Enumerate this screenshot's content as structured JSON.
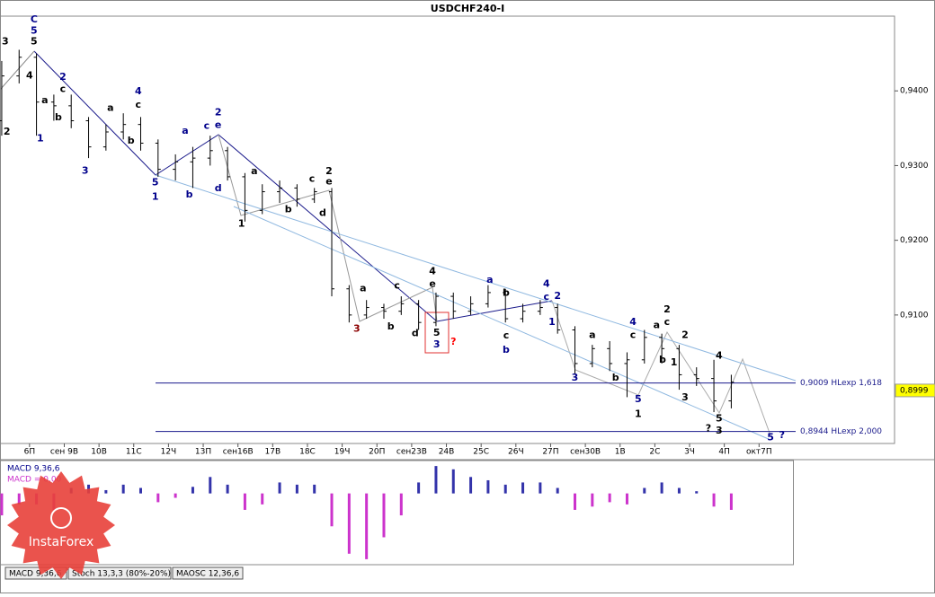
{
  "chart_data": [
    {
      "type": "ohlc",
      "title": "USDCHF240-I",
      "x": [
        -0.8,
        -0.3,
        0.2,
        0.7,
        1.2,
        1.7,
        2.2,
        2.7,
        3.2,
        3.7,
        4.2,
        4.7,
        5.2,
        5.7,
        6.2,
        6.7,
        7.2,
        7.7,
        8.2,
        8.7,
        9.2,
        9.7,
        10.2,
        10.7,
        11.2,
        11.7,
        12.2,
        12.7,
        13.2,
        13.7,
        14.2,
        14.7,
        15.2,
        15.7,
        16.2,
        16.7,
        17.2,
        17.7,
        18.2,
        18.7,
        19.2,
        19.7,
        20.2
      ],
      "open": [
        0.936,
        0.942,
        0.9445,
        0.9385,
        0.938,
        0.936,
        0.9325,
        0.9345,
        0.9355,
        0.933,
        0.9295,
        0.9305,
        0.931,
        0.932,
        0.9285,
        0.924,
        0.9265,
        0.927,
        0.9255,
        0.9265,
        0.9135,
        0.91,
        0.911,
        0.9105,
        0.9115,
        0.909,
        0.9125,
        0.9105,
        0.9115,
        0.913,
        0.9095,
        0.9105,
        0.911,
        0.908,
        0.9035,
        0.9055,
        0.9035,
        0.904,
        0.907,
        0.9055,
        0.902,
        0.9015,
        0.8985
      ],
      "high": [
        0.944,
        0.9455,
        0.945,
        0.9395,
        0.9395,
        0.9365,
        0.9355,
        0.937,
        0.9365,
        0.9335,
        0.9315,
        0.9325,
        0.934,
        0.9325,
        0.929,
        0.9275,
        0.928,
        0.9275,
        0.927,
        0.927,
        0.914,
        0.912,
        0.9115,
        0.9125,
        0.912,
        0.913,
        0.913,
        0.9125,
        0.914,
        0.9135,
        0.9115,
        0.912,
        0.9115,
        0.9085,
        0.906,
        0.9065,
        0.905,
        0.908,
        0.9075,
        0.906,
        0.903,
        0.904,
        0.902
      ],
      "low": [
        0.934,
        0.941,
        0.934,
        0.936,
        0.935,
        0.931,
        0.932,
        0.9335,
        0.932,
        0.9285,
        0.928,
        0.927,
        0.93,
        0.928,
        0.9225,
        0.9235,
        0.925,
        0.9245,
        0.925,
        0.9125,
        0.909,
        0.9095,
        0.9095,
        0.91,
        0.908,
        0.9085,
        0.9095,
        0.91,
        0.911,
        0.909,
        0.909,
        0.91,
        0.9075,
        0.902,
        0.903,
        0.9025,
        0.899,
        0.9035,
        0.9035,
        0.9,
        0.9005,
        0.897,
        0.8975
      ],
      "close": [
        0.942,
        0.9445,
        0.9385,
        0.938,
        0.936,
        0.9325,
        0.9345,
        0.9355,
        0.933,
        0.9295,
        0.9305,
        0.931,
        0.932,
        0.9285,
        0.924,
        0.9265,
        0.927,
        0.9255,
        0.9265,
        0.9135,
        0.91,
        0.911,
        0.9105,
        0.9115,
        0.909,
        0.9125,
        0.9105,
        0.9115,
        0.913,
        0.9095,
        0.9105,
        0.911,
        0.908,
        0.9035,
        0.9055,
        0.9035,
        0.904,
        0.907,
        0.9055,
        0.902,
        0.9015,
        0.8985,
        0.901
      ],
      "color": "#000000",
      "xlim": [
        -0.85,
        24.9
      ],
      "ylim": [
        0.8928,
        0.95
      ],
      "yticks": [
        {
          "value": 0.94,
          "label": "0,9400"
        },
        {
          "value": 0.93,
          "label": "0,9300"
        },
        {
          "value": 0.92,
          "label": "0,9200"
        },
        {
          "value": 0.91,
          "label": "0,9100"
        }
      ],
      "xticks": [
        {
          "value": 0,
          "label": "6П"
        },
        {
          "value": 1,
          "label": "сен 9В"
        },
        {
          "value": 2,
          "label": "10В"
        },
        {
          "value": 3,
          "label": "11С"
        },
        {
          "value": 4,
          "label": "12Ч"
        },
        {
          "value": 5,
          "label": "13П"
        },
        {
          "value": 6,
          "label": "сен16В"
        },
        {
          "value": 7,
          "label": "17В"
        },
        {
          "value": 8,
          "label": "18С"
        },
        {
          "value": 9,
          "label": "19Ч"
        },
        {
          "value": 10,
          "label": "20П"
        },
        {
          "value": 11,
          "label": "сен23В"
        },
        {
          "value": 12,
          "label": "24В"
        },
        {
          "value": 13,
          "label": "25С"
        },
        {
          "value": 14,
          "label": "26Ч"
        },
        {
          "value": 15,
          "label": "27П"
        },
        {
          "value": 16,
          "label": "сен30В"
        },
        {
          "value": 17,
          "label": "1В"
        },
        {
          "value": 18,
          "label": "2С"
        },
        {
          "value": 19,
          "label": "3Ч"
        },
        {
          "value": 20,
          "label": "4П"
        },
        {
          "value": 21,
          "label": "окт7П"
        }
      ],
      "current_price": {
        "value": 0.8999,
        "label": "0,8999"
      },
      "levels": [
        {
          "value": 0.9009,
          "label": "0,9009 HLexp 1,618"
        },
        {
          "value": 0.8944,
          "label": "0,8944 HLexp 2,000"
        }
      ],
      "annotations": [
        {
          "text": "C",
          "x": 0.13,
          "y": 0.9495,
          "color": "#00008b"
        },
        {
          "text": "5",
          "x": 0.13,
          "y": 0.948,
          "color": "#00008b"
        },
        {
          "text": "3",
          "x": -0.7,
          "y": 0.9466,
          "color": "#000000"
        },
        {
          "text": "5",
          "x": 0.13,
          "y": 0.9466,
          "color": "#000000"
        },
        {
          "text": "4",
          "x": 0.0,
          "y": 0.942,
          "color": "#000000"
        },
        {
          "text": "2",
          "x": -0.65,
          "y": 0.9345,
          "color": "#000000"
        },
        {
          "text": "1",
          "x": 0.31,
          "y": 0.9336,
          "color": "#00008b"
        },
        {
          "text": "2",
          "x": 0.96,
          "y": 0.9418,
          "color": "#00008b"
        },
        {
          "text": "c",
          "x": 0.96,
          "y": 0.9402,
          "color": "#000000"
        },
        {
          "text": "a",
          "x": 0.44,
          "y": 0.9387,
          "color": "#000000"
        },
        {
          "text": "b",
          "x": 0.83,
          "y": 0.9364,
          "color": "#000000"
        },
        {
          "text": "3",
          "x": 1.6,
          "y": 0.9293,
          "color": "#00008b"
        },
        {
          "text": "4",
          "x": 3.13,
          "y": 0.9399,
          "color": "#00008b"
        },
        {
          "text": "c",
          "x": 3.13,
          "y": 0.9381,
          "color": "#000000"
        },
        {
          "text": "a",
          "x": 2.33,
          "y": 0.9377,
          "color": "#000000"
        },
        {
          "text": "b",
          "x": 2.92,
          "y": 0.9333,
          "color": "#000000"
        },
        {
          "text": "5",
          "x": 3.62,
          "y": 0.9277,
          "color": "#00008b"
        },
        {
          "text": "1",
          "x": 3.62,
          "y": 0.9258,
          "color": "#00008b"
        },
        {
          "text": "b",
          "x": 4.6,
          "y": 0.9261,
          "color": "#00008b"
        },
        {
          "text": "a",
          "x": 4.48,
          "y": 0.9346,
          "color": "#00008b"
        },
        {
          "text": "2",
          "x": 5.43,
          "y": 0.9371,
          "color": "#00008b"
        },
        {
          "text": "c",
          "x": 5.1,
          "y": 0.9353,
          "color": "#00008b"
        },
        {
          "text": "e",
          "x": 5.43,
          "y": 0.9354,
          "color": "#00008b"
        },
        {
          "text": "d",
          "x": 5.43,
          "y": 0.9269,
          "color": "#00008b"
        },
        {
          "text": "a",
          "x": 6.47,
          "y": 0.9292,
          "color": "#000000"
        },
        {
          "text": "1",
          "x": 6.1,
          "y": 0.9222,
          "color": "#000000"
        },
        {
          "text": "b",
          "x": 7.45,
          "y": 0.9241,
          "color": "#000000"
        },
        {
          "text": "c",
          "x": 8.13,
          "y": 0.9282,
          "color": "#000000"
        },
        {
          "text": "2",
          "x": 8.62,
          "y": 0.9292,
          "color": "#000000"
        },
        {
          "text": "e",
          "x": 8.62,
          "y": 0.9278,
          "color": "#000000"
        },
        {
          "text": "d",
          "x": 8.44,
          "y": 0.9236,
          "color": "#000000"
        },
        {
          "text": "a",
          "x": 9.6,
          "y": 0.9135,
          "color": "#000000"
        },
        {
          "text": "c",
          "x": 10.58,
          "y": 0.9139,
          "color": "#000000"
        },
        {
          "text": "b",
          "x": 10.4,
          "y": 0.9084,
          "color": "#000000"
        },
        {
          "text": "3",
          "x": 9.42,
          "y": 0.9081,
          "color": "#8b0000"
        },
        {
          "text": "d",
          "x": 11.1,
          "y": 0.9075,
          "color": "#000000"
        },
        {
          "text": "4",
          "x": 11.6,
          "y": 0.9158,
          "color": "#000000"
        },
        {
          "text": "e",
          "x": 11.6,
          "y": 0.9141,
          "color": "#000000"
        },
        {
          "text": "5",
          "x": 11.72,
          "y": 0.9076,
          "color": "#000000"
        },
        {
          "text": "3",
          "x": 11.72,
          "y": 0.906,
          "color": "#00008b"
        },
        {
          "text": "?",
          "x": 12.2,
          "y": 0.9064,
          "color": "#ff0000"
        },
        {
          "text": "a",
          "x": 13.25,
          "y": 0.9147,
          "color": "#00008b"
        },
        {
          "text": "b",
          "x": 13.72,
          "y": 0.9129,
          "color": "#000000"
        },
        {
          "text": "c",
          "x": 13.72,
          "y": 0.9072,
          "color": "#000000"
        },
        {
          "text": "b",
          "x": 13.72,
          "y": 0.9053,
          "color": "#00008b"
        },
        {
          "text": "4",
          "x": 14.88,
          "y": 0.9141,
          "color": "#00008b"
        },
        {
          "text": "c",
          "x": 14.88,
          "y": 0.9124,
          "color": "#00008b"
        },
        {
          "text": "2",
          "x": 15.2,
          "y": 0.9125,
          "color": "#00008b"
        },
        {
          "text": "1",
          "x": 15.04,
          "y": 0.909,
          "color": "#00008b"
        },
        {
          "text": "3",
          "x": 15.7,
          "y": 0.9016,
          "color": "#00008b"
        },
        {
          "text": "a",
          "x": 16.2,
          "y": 0.9073,
          "color": "#000000"
        },
        {
          "text": "b",
          "x": 16.87,
          "y": 0.9016,
          "color": "#000000"
        },
        {
          "text": "4",
          "x": 17.37,
          "y": 0.909,
          "color": "#00008b"
        },
        {
          "text": "c",
          "x": 17.37,
          "y": 0.9073,
          "color": "#000000"
        },
        {
          "text": "5",
          "x": 17.52,
          "y": 0.8987,
          "color": "#00008b"
        },
        {
          "text": "1",
          "x": 17.52,
          "y": 0.8967,
          "color": "#000000"
        },
        {
          "text": "2",
          "x": 18.35,
          "y": 0.9107,
          "color": "#000000"
        },
        {
          "text": "a",
          "x": 18.05,
          "y": 0.9086,
          "color": "#000000"
        },
        {
          "text": "c",
          "x": 18.35,
          "y": 0.909,
          "color": "#000000"
        },
        {
          "text": "b",
          "x": 18.22,
          "y": 0.904,
          "color": "#000000"
        },
        {
          "text": "1",
          "x": 18.55,
          "y": 0.9036,
          "color": "#000000"
        },
        {
          "text": "2",
          "x": 18.87,
          "y": 0.9073,
          "color": "#000000"
        },
        {
          "text": "3",
          "x": 18.87,
          "y": 0.8989,
          "color": "#000000"
        },
        {
          "text": "4",
          "x": 19.85,
          "y": 0.9045,
          "color": "#000000"
        },
        {
          "text": "5",
          "x": 19.85,
          "y": 0.8961,
          "color": "#000000"
        },
        {
          "text": "?",
          "x": 19.54,
          "y": 0.8948,
          "color": "#000000"
        },
        {
          "text": "3",
          "x": 19.85,
          "y": 0.8945,
          "color": "#000000"
        },
        {
          "text": "5",
          "x": 21.33,
          "y": 0.8936,
          "color": "#00008b"
        },
        {
          "text": "?",
          "x": 21.66,
          "y": 0.8939,
          "color": "#00008b"
        }
      ]
    },
    {
      "type": "bar",
      "legend": [
        {
          "name": "MACD 9,36,6",
          "color": "#00008b"
        },
        {
          "name": "MACD = 0,00",
          "color": "#cc33cc"
        }
      ],
      "x": [
        -0.8,
        -0.3,
        0.2,
        0.7,
        1.2,
        1.7,
        2.2,
        2.7,
        3.2,
        3.7,
        4.2,
        4.7,
        5.2,
        5.7,
        6.2,
        6.7,
        7.2,
        7.7,
        8.2,
        8.7,
        9.2,
        9.7,
        10.2,
        10.7,
        11.2,
        11.7,
        12.2,
        12.7,
        13.2,
        13.7,
        14.2,
        14.7,
        15.2,
        15.7,
        16.2,
        16.7,
        17.2,
        17.7,
        18.2,
        18.7,
        19.2,
        19.7,
        20.2
      ],
      "values": [
        -0.002,
        -0.001,
        -0.001,
        -0.0015,
        0.0005,
        0.0008,
        0.0003,
        0.0008,
        0.0005,
        -0.0008,
        -0.0004,
        0.0006,
        0.0015,
        0.0008,
        -0.0015,
        -0.001,
        0.001,
        0.0008,
        0.0008,
        -0.003,
        -0.0055,
        -0.006,
        -0.004,
        -0.002,
        0.001,
        0.0025,
        0.0022,
        0.0015,
        0.0012,
        0.0008,
        0.001,
        0.001,
        0.0005,
        -0.0015,
        -0.0012,
        -0.0008,
        -0.001,
        0.0005,
        0.001,
        0.0005,
        0.0002,
        -0.0012,
        -0.0015
      ],
      "positive_color": "#3333aa",
      "negative_color": "#cc33cc",
      "xlim": [
        -0.85,
        24.9
      ],
      "ylim": [
        -0.0065,
        0.003
      ]
    }
  ],
  "tabs": [
    "MACD 9,36,6",
    "Stoch 13,3,3 (80%-20%)",
    "MAOSC 12,36,6"
  ],
  "logo": "InstaForex"
}
